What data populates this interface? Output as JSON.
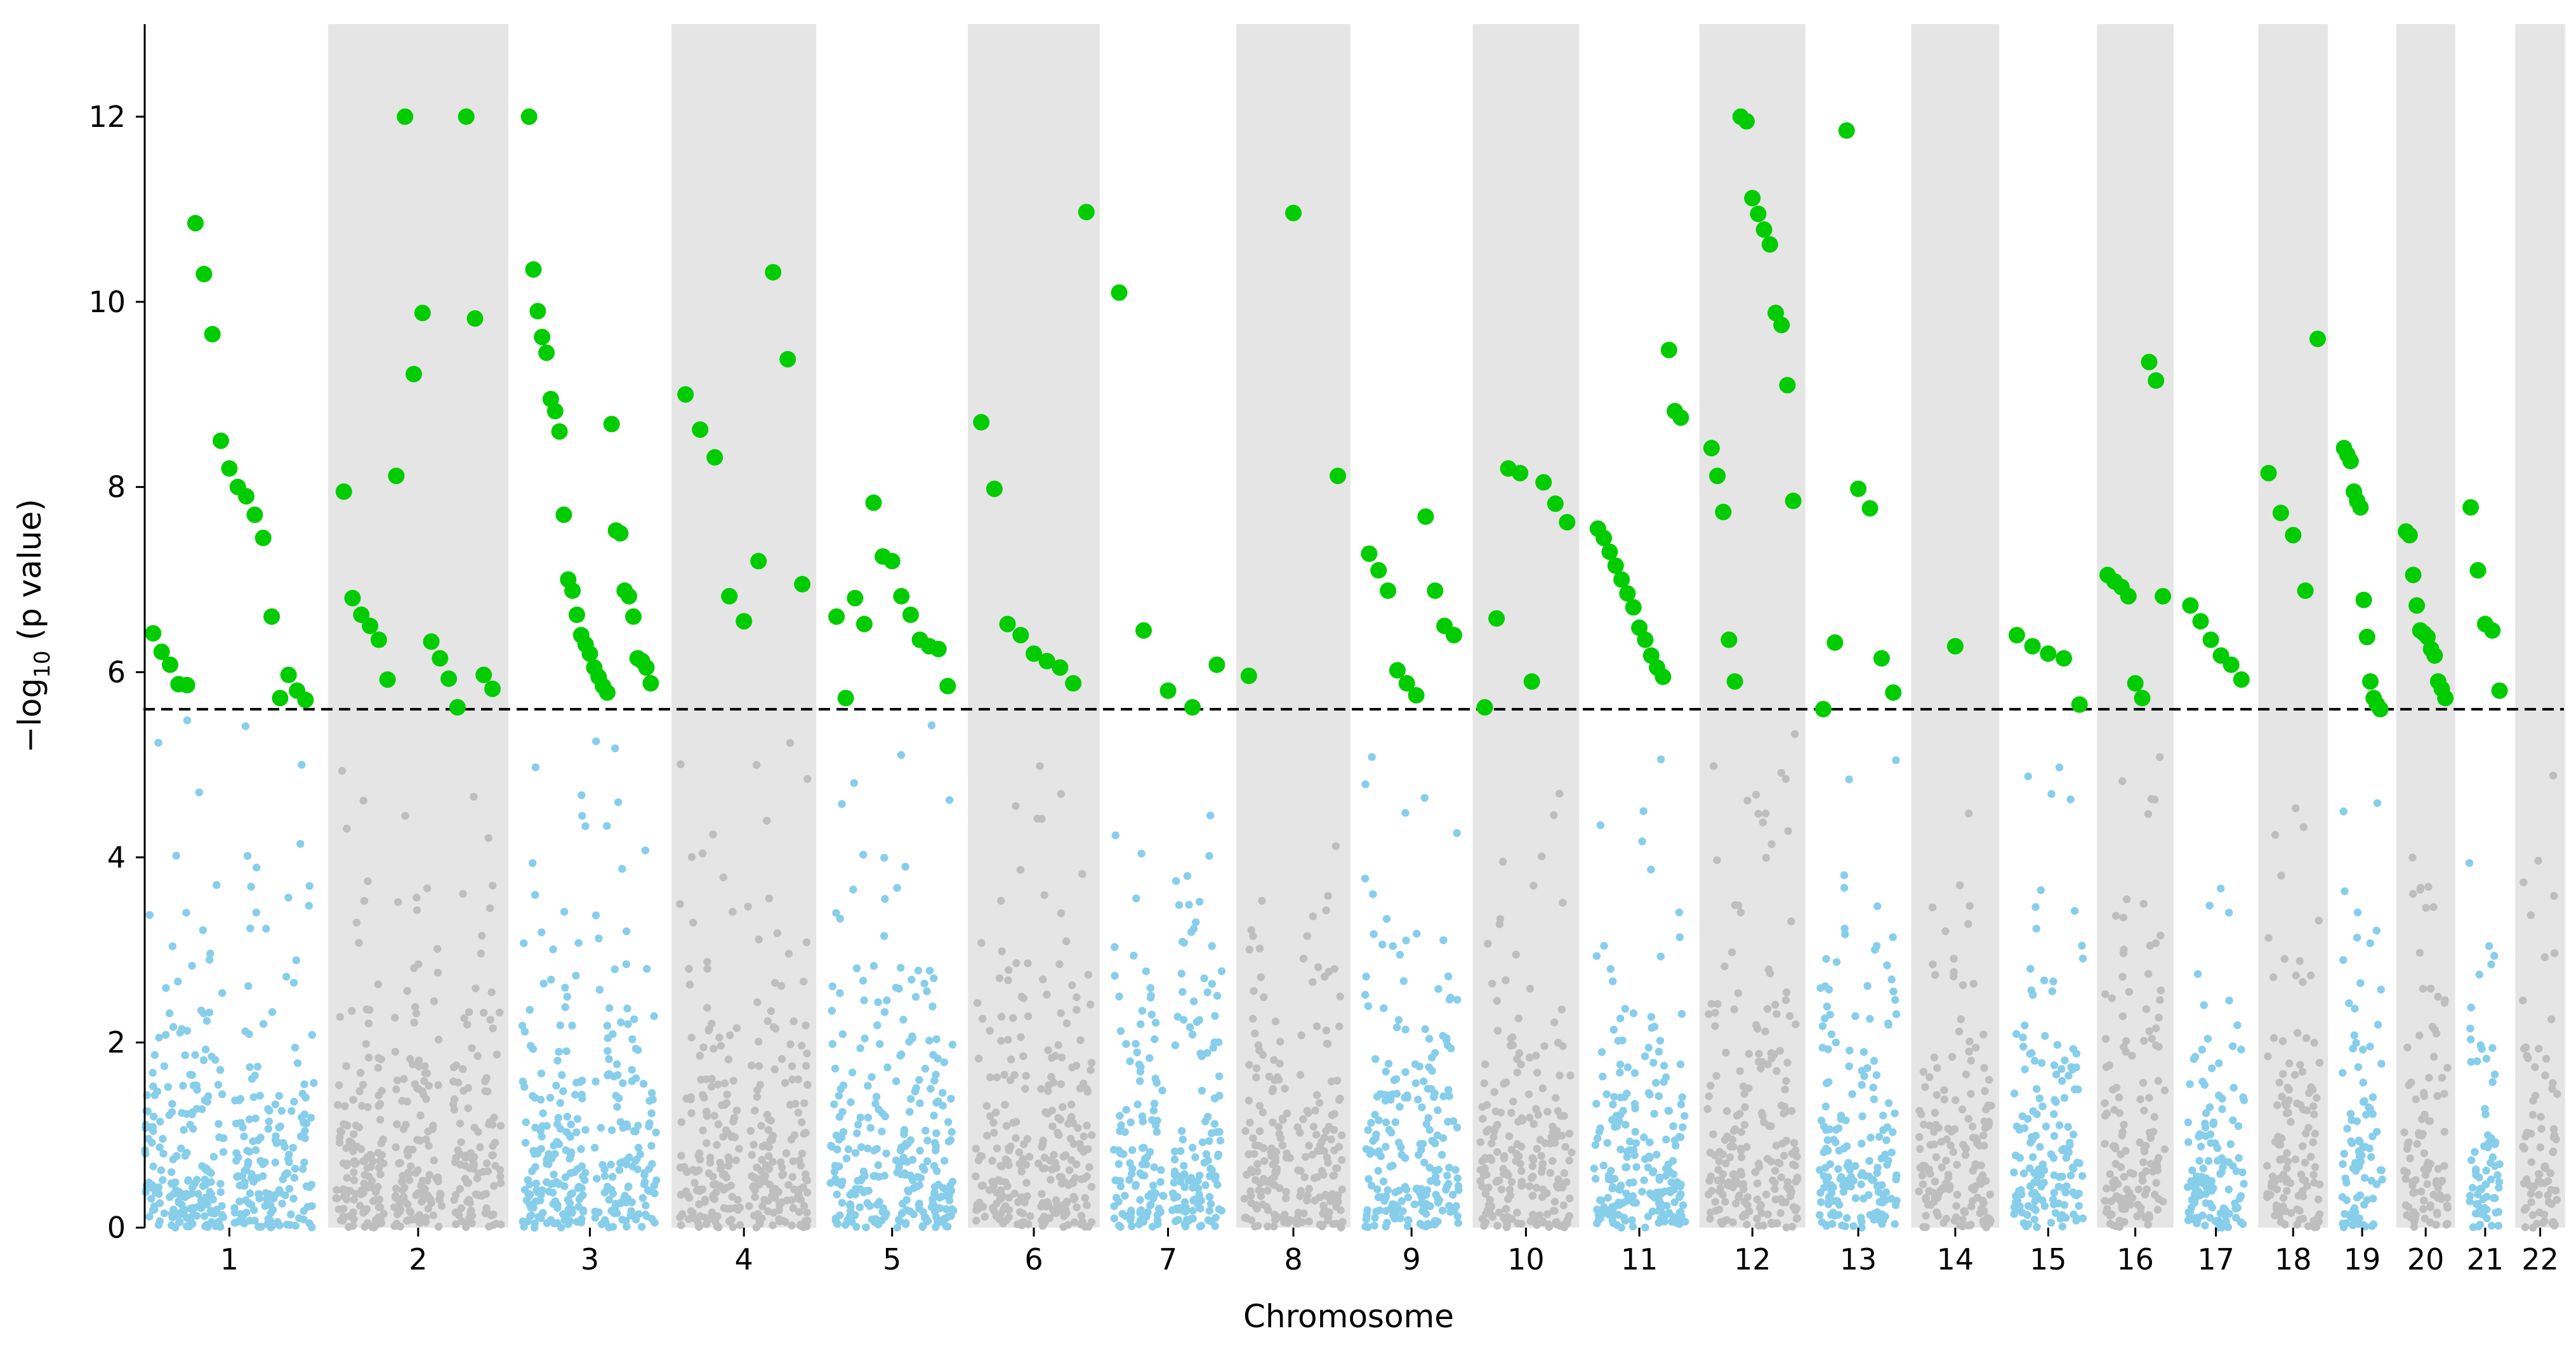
{
  "chart_data": {
    "type": "scatter",
    "subtype": "manhattan",
    "title": "",
    "xlabel": "Chromosome",
    "ylabel_parts": [
      "−log",
      "10",
      " (p value)"
    ],
    "ylim": [
      0,
      13
    ],
    "yticks": [
      0,
      2,
      4,
      6,
      8,
      10,
      12
    ],
    "threshold": 5.6,
    "threshold_style": "dashed",
    "colors": {
      "odd_chromosome": "#87CEEB",
      "even_chromosome": "#BEBEBE",
      "significant": "#00CC00",
      "band": "#E5E5E5",
      "threshold_line": "#000000"
    },
    "chromosomes": [
      {
        "label": "1",
        "length": 248,
        "max_bg": 5.5,
        "segments": 2,
        "hits": [
          6.42,
          6.22,
          6.08,
          5.87,
          5.86,
          10.85,
          10.3,
          9.65,
          8.5,
          8.2,
          8.0,
          7.9,
          7.7,
          7.45,
          6.6,
          5.72,
          5.97,
          5.8,
          5.7
        ]
      },
      {
        "label": "2",
        "length": 242,
        "max_bg": 5.2,
        "segments": 3,
        "hits": [
          7.95,
          6.8,
          6.62,
          6.5,
          6.35,
          5.92,
          8.12,
          12.0,
          9.22,
          9.88,
          6.33,
          6.15,
          5.93,
          5.62,
          12.0,
          9.82,
          5.97,
          5.82
        ]
      },
      {
        "label": "3",
        "length": 198,
        "max_bg": 5.5,
        "segments": 2,
        "hits": [
          12.0,
          10.35,
          9.9,
          9.62,
          9.45,
          8.95,
          8.82,
          8.6,
          7.7,
          7.0,
          6.88,
          6.62,
          6.4,
          6.3,
          6.2,
          6.05,
          5.95,
          5.85,
          5.78,
          8.68,
          7.53,
          7.5,
          6.88,
          6.82,
          6.6,
          6.15,
          6.12,
          6.05,
          5.88
        ]
      },
      {
        "label": "4",
        "length": 190,
        "max_bg": 5.5,
        "segments": 2,
        "hits": [
          9.0,
          8.62,
          8.32,
          6.82,
          6.55,
          7.2,
          10.32,
          9.38,
          6.95
        ]
      },
      {
        "label": "5",
        "length": 181,
        "max_bg": 5.5,
        "segments": 2,
        "hits": [
          6.6,
          5.72,
          6.8,
          6.52,
          7.83,
          7.25,
          7.2,
          6.82,
          6.62,
          6.35,
          6.28,
          6.25,
          5.85
        ]
      },
      {
        "label": "6",
        "length": 171,
        "max_bg": 5.3,
        "segments": 2,
        "hits": [
          8.7,
          7.98,
          6.52,
          6.4,
          6.2,
          6.12,
          6.05,
          5.88,
          10.97
        ]
      },
      {
        "label": "7",
        "length": 159,
        "max_bg": 4.6,
        "segments": 2,
        "hits": [
          10.1,
          6.45,
          5.8,
          5.62,
          6.08
        ]
      },
      {
        "label": "8",
        "length": 145,
        "max_bg": 5.3,
        "segments": 2,
        "hits": [
          5.96,
          10.96,
          8.12
        ]
      },
      {
        "label": "9",
        "length": 138,
        "max_bg": 5.6,
        "segments": 2,
        "hits": [
          7.28,
          7.1,
          6.88,
          6.02,
          5.88,
          5.75,
          7.68,
          6.88,
          6.5,
          6.4
        ]
      },
      {
        "label": "10",
        "length": 134,
        "max_bg": 5.5,
        "segments": 2,
        "hits": [
          5.62,
          6.58,
          8.2,
          8.15,
          5.9,
          8.05,
          7.82,
          7.62
        ]
      },
      {
        "label": "11",
        "length": 135,
        "max_bg": 5.2,
        "segments": 2,
        "hits": [
          7.55,
          7.45,
          7.3,
          7.15,
          7.0,
          6.85,
          6.7,
          6.48,
          6.35,
          6.18,
          6.05,
          5.95,
          9.48,
          8.82,
          8.75
        ]
      },
      {
        "label": "12",
        "length": 133,
        "max_bg": 5.6,
        "segments": 2,
        "hits": [
          8.42,
          8.12,
          7.73,
          6.35,
          5.9,
          12.0,
          11.95,
          11.12,
          10.95,
          10.78,
          10.62,
          9.88,
          9.75,
          9.1,
          7.85
        ]
      },
      {
        "label": "13",
        "length": 114,
        "max_bg": 5.3,
        "segments": 2,
        "hits": [
          5.6,
          6.32,
          11.85,
          7.98,
          7.77,
          6.15,
          5.78
        ]
      },
      {
        "label": "14",
        "length": 107,
        "max_bg": 4.8,
        "segments": 1,
        "hits": [
          6.28
        ]
      },
      {
        "label": "15",
        "length": 102,
        "max_bg": 5.0,
        "segments": 2,
        "hits": [
          6.4,
          6.28,
          6.2,
          6.15,
          5.65
        ]
      },
      {
        "label": "16",
        "length": 90,
        "max_bg": 5.5,
        "segments": 2,
        "hits": [
          7.05,
          6.98,
          6.92,
          6.82,
          5.88,
          5.72,
          9.35,
          9.15,
          6.82
        ]
      },
      {
        "label": "17",
        "length": 83,
        "max_bg": 5.2,
        "segments": 1,
        "hits": [
          6.72,
          6.55,
          6.35,
          6.18,
          6.08,
          5.92
        ]
      },
      {
        "label": "18",
        "length": 80,
        "max_bg": 5.3,
        "segments": 2,
        "hits": [
          8.15,
          7.72,
          7.48,
          6.88,
          9.6
        ]
      },
      {
        "label": "19",
        "length": 59,
        "max_bg": 5.5,
        "segments": 1,
        "hits": [
          8.42,
          8.35,
          8.28,
          7.95,
          7.85,
          7.78,
          6.78,
          6.38,
          5.9,
          5.72,
          5.65,
          5.6
        ]
      },
      {
        "label": "20",
        "length": 64,
        "max_bg": 5.3,
        "segments": 1,
        "hits": [
          7.52,
          7.48,
          7.05,
          6.72,
          6.45,
          6.42,
          6.38,
          6.25,
          6.18,
          5.9,
          5.82,
          5.72
        ]
      },
      {
        "label": "21",
        "length": 47,
        "max_bg": 5.1,
        "segments": 1,
        "hits": [
          7.78,
          7.1,
          6.52,
          6.45,
          5.8
        ]
      },
      {
        "label": "22",
        "length": 51,
        "max_bg": 5.3,
        "segments": 1,
        "hits": []
      }
    ]
  }
}
